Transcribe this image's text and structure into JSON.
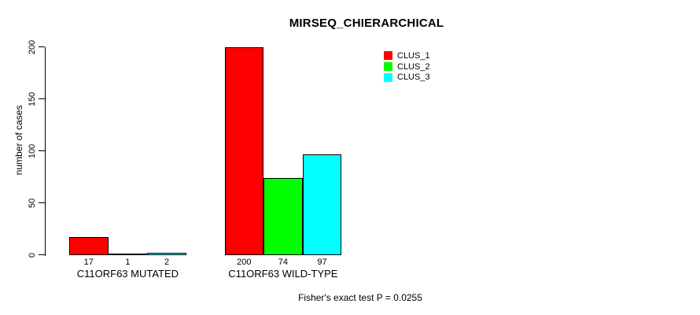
{
  "chart_data": {
    "type": "bar",
    "title": "MIRSEQ_CHIERARCHICAL",
    "ylabel": "number of cases",
    "xlabel": "",
    "categories": [
      "C11ORF63 MUTATED",
      "C11ORF63 WILD-TYPE"
    ],
    "series": [
      {
        "name": "CLUS_1",
        "color": "#FF0000",
        "values": [
          17,
          200
        ]
      },
      {
        "name": "CLUS_2",
        "color": "#00FF00",
        "values": [
          1,
          74
        ]
      },
      {
        "name": "CLUS_3",
        "color": "#00FFFF",
        "values": [
          2,
          97
        ]
      }
    ],
    "ylim": [
      0,
      200
    ],
    "yticks": [
      0,
      50,
      100,
      150,
      200
    ],
    "bar_value_labels_shown": true,
    "legend_position": "top-right-inside",
    "grid": false,
    "annotation": "Fisher's exact test P = 0.0255",
    "bar_edge_color": "#000000",
    "axis_color": "#000000",
    "background_color": "#FFFFFF",
    "text_color": "#000000"
  }
}
